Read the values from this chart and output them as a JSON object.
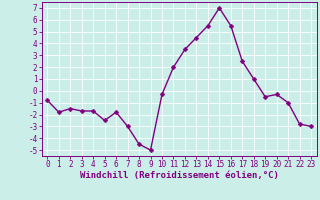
{
  "x": [
    0,
    1,
    2,
    3,
    4,
    5,
    6,
    7,
    8,
    9,
    10,
    11,
    12,
    13,
    14,
    15,
    16,
    17,
    18,
    19,
    20,
    21,
    22,
    23
  ],
  "y": [
    -0.8,
    -1.8,
    -1.5,
    -1.7,
    -1.7,
    -2.5,
    -1.8,
    -3.0,
    -4.5,
    -5.0,
    -0.3,
    2.0,
    3.5,
    4.5,
    5.5,
    7.0,
    5.5,
    2.5,
    1.0,
    -0.5,
    -0.3,
    -1.0,
    -2.8,
    -3.0
  ],
  "line_color": "#800080",
  "marker": "D",
  "marker_size": 2.5,
  "bg_color": "#cceee8",
  "grid_color": "#bbdddd",
  "xlabel": "Windchill (Refroidissement éolien,°C)",
  "xlim": [
    -0.5,
    23.5
  ],
  "ylim": [
    -5.5,
    7.5
  ],
  "xticks": [
    0,
    1,
    2,
    3,
    4,
    5,
    6,
    7,
    8,
    9,
    10,
    11,
    12,
    13,
    14,
    15,
    16,
    17,
    18,
    19,
    20,
    21,
    22,
    23
  ],
  "yticks": [
    -5,
    -4,
    -3,
    -2,
    -1,
    0,
    1,
    2,
    3,
    4,
    5,
    6,
    7
  ],
  "tick_fontsize": 5.5,
  "xlabel_fontsize": 6.5,
  "line_width": 1.0
}
